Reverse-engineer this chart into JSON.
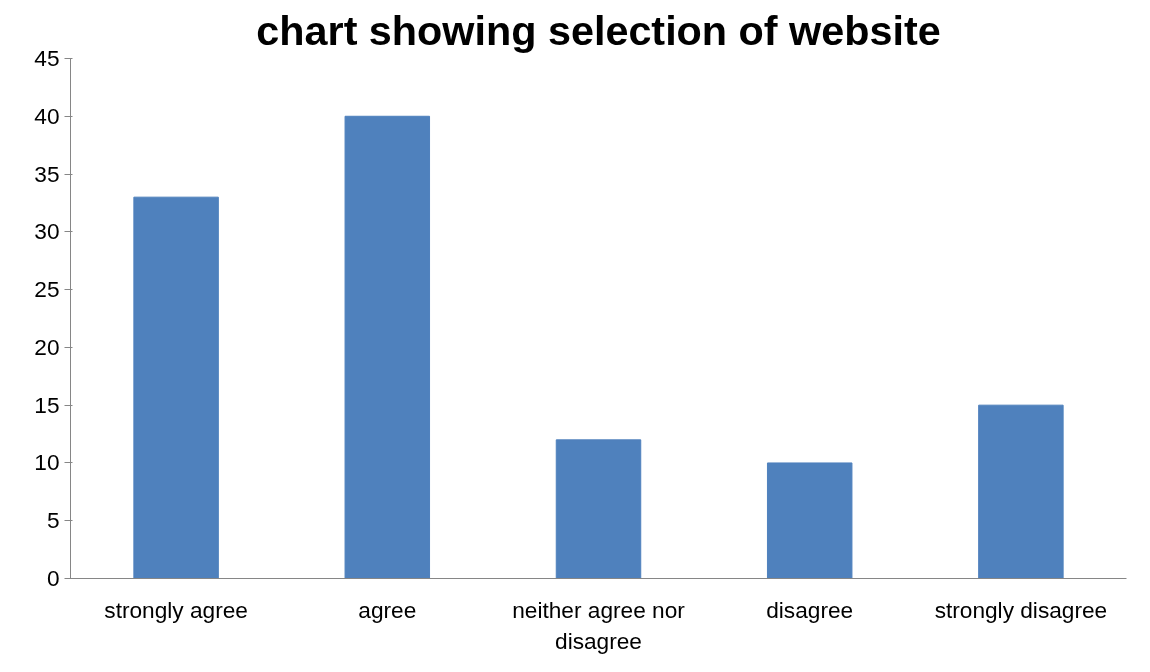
{
  "chart_data": {
    "type": "bar",
    "title": "chart showing selection of website",
    "categories": [
      "strongly agree",
      "agree",
      "neither agree nor disagree",
      "disagree",
      "strongly disagree"
    ],
    "values": [
      33,
      40,
      12,
      10,
      15
    ],
    "color": "#4f81bd",
    "ylim": [
      0,
      45
    ],
    "yticks": [
      0,
      5,
      10,
      15,
      20,
      25,
      30,
      35,
      40,
      45
    ],
    "grid": false
  }
}
